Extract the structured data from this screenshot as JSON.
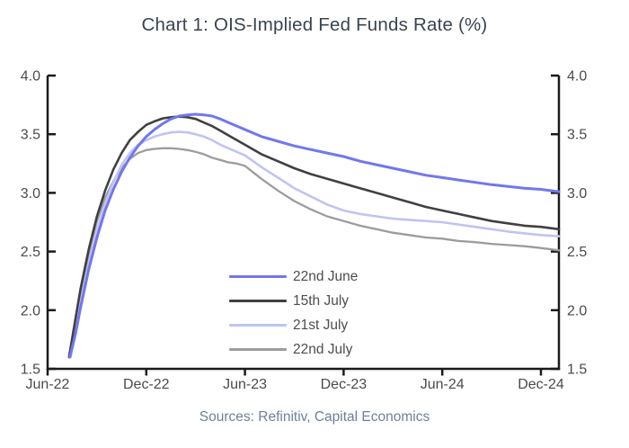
{
  "title": "Chart 1: OIS-Implied Fed Funds Rate (%)",
  "source": "Sources: Refinitiv, Capital Economics",
  "colors": {
    "axis": "#1a1a1a",
    "tick_label": "#4a4a4a",
    "title": "#3a4350",
    "source_text": "#6e8098"
  },
  "chart_data": {
    "type": "line",
    "title": "Chart 1: OIS-Implied Fed Funds Rate (%)",
    "xlabel": "",
    "ylabel": "",
    "x_unit": "months after Jun-2022",
    "xlim": [
      0,
      31.1
    ],
    "ylim": [
      1.5,
      4.0
    ],
    "grid": false,
    "legend_position": "inside-bottom-center",
    "x_ticks": [
      {
        "month": 0,
        "label": "Jun-22"
      },
      {
        "month": 6,
        "label": "Dec-22"
      },
      {
        "month": 12,
        "label": "Jun-23"
      },
      {
        "month": 18,
        "label": "Dec-23"
      },
      {
        "month": 24,
        "label": "Jun-24"
      },
      {
        "month": 30,
        "label": "Dec-24"
      }
    ],
    "y_ticks": [
      {
        "value": 4.0,
        "label": "4.0"
      },
      {
        "value": 3.5,
        "label": "3.5"
      },
      {
        "value": 3.0,
        "label": "3.0"
      },
      {
        "value": 2.5,
        "label": "2.5"
      },
      {
        "value": 2.0,
        "label": "2.0"
      },
      {
        "value": 1.5,
        "label": "1.5"
      }
    ],
    "series": [
      {
        "name": "22nd June",
        "label": "22nd June",
        "color": "#7177ee",
        "width": 3,
        "points": [
          [
            1.35,
            1.6
          ],
          [
            1.7,
            1.8
          ],
          [
            2,
            2.02
          ],
          [
            2.5,
            2.35
          ],
          [
            3,
            2.62
          ],
          [
            3.5,
            2.85
          ],
          [
            4,
            3.03
          ],
          [
            4.5,
            3.18
          ],
          [
            5,
            3.3
          ],
          [
            5.5,
            3.4
          ],
          [
            6,
            3.48
          ],
          [
            6.5,
            3.54
          ],
          [
            7,
            3.59
          ],
          [
            7.5,
            3.63
          ],
          [
            8,
            3.655
          ],
          [
            8.5,
            3.665
          ],
          [
            9,
            3.67
          ],
          [
            9.5,
            3.665
          ],
          [
            10,
            3.655
          ],
          [
            10.5,
            3.63
          ],
          [
            11,
            3.6
          ],
          [
            11.5,
            3.57
          ],
          [
            12,
            3.54
          ],
          [
            13,
            3.48
          ],
          [
            14,
            3.44
          ],
          [
            15,
            3.4
          ],
          [
            16,
            3.37
          ],
          [
            17,
            3.34
          ],
          [
            18,
            3.31
          ],
          [
            19,
            3.27
          ],
          [
            20,
            3.24
          ],
          [
            21,
            3.21
          ],
          [
            22,
            3.18
          ],
          [
            23,
            3.15
          ],
          [
            24,
            3.13
          ],
          [
            25,
            3.11
          ],
          [
            26,
            3.09
          ],
          [
            27,
            3.07
          ],
          [
            28,
            3.055
          ],
          [
            29,
            3.04
          ],
          [
            30,
            3.03
          ],
          [
            31.1,
            3.01
          ]
        ]
      },
      {
        "name": "15th July",
        "label": "15th July",
        "color": "#404040",
        "width": 2.6,
        "points": [
          [
            1.3,
            1.6
          ],
          [
            1.6,
            1.85
          ],
          [
            2,
            2.18
          ],
          [
            2.5,
            2.52
          ],
          [
            3,
            2.8
          ],
          [
            3.5,
            3.02
          ],
          [
            4,
            3.2
          ],
          [
            4.5,
            3.34
          ],
          [
            5,
            3.45
          ],
          [
            5.5,
            3.52
          ],
          [
            6,
            3.58
          ],
          [
            6.5,
            3.61
          ],
          [
            7,
            3.635
          ],
          [
            7.5,
            3.645
          ],
          [
            8,
            3.65
          ],
          [
            8.5,
            3.645
          ],
          [
            9,
            3.63
          ],
          [
            9.5,
            3.6
          ],
          [
            10,
            3.57
          ],
          [
            10.5,
            3.53
          ],
          [
            11,
            3.49
          ],
          [
            11.5,
            3.45
          ],
          [
            12,
            3.41
          ],
          [
            13,
            3.33
          ],
          [
            14,
            3.27
          ],
          [
            15,
            3.21
          ],
          [
            16,
            3.16
          ],
          [
            17,
            3.12
          ],
          [
            18,
            3.08
          ],
          [
            19,
            3.04
          ],
          [
            20,
            3.0
          ],
          [
            21,
            2.96
          ],
          [
            22,
            2.92
          ],
          [
            23,
            2.88
          ],
          [
            24,
            2.85
          ],
          [
            25,
            2.82
          ],
          [
            26,
            2.79
          ],
          [
            27,
            2.76
          ],
          [
            28,
            2.74
          ],
          [
            29,
            2.72
          ],
          [
            30,
            2.71
          ],
          [
            31.1,
            2.69
          ]
        ]
      },
      {
        "name": "21st July",
        "label": "21st July",
        "color": "#bfc4f4",
        "width": 2.6,
        "points": [
          [
            1.4,
            1.6
          ],
          [
            1.7,
            1.82
          ],
          [
            2,
            2.06
          ],
          [
            2.5,
            2.4
          ],
          [
            3,
            2.68
          ],
          [
            3.5,
            2.91
          ],
          [
            4,
            3.09
          ],
          [
            4.5,
            3.24
          ],
          [
            5,
            3.34
          ],
          [
            5.5,
            3.41
          ],
          [
            6,
            3.45
          ],
          [
            6.5,
            3.48
          ],
          [
            7,
            3.5
          ],
          [
            7.5,
            3.515
          ],
          [
            8,
            3.52
          ],
          [
            8.5,
            3.515
          ],
          [
            9,
            3.5
          ],
          [
            9.5,
            3.48
          ],
          [
            10,
            3.45
          ],
          [
            10.5,
            3.41
          ],
          [
            11,
            3.38
          ],
          [
            11.5,
            3.35
          ],
          [
            12,
            3.32
          ],
          [
            13,
            3.22
          ],
          [
            14,
            3.13
          ],
          [
            15,
            3.04
          ],
          [
            16,
            2.97
          ],
          [
            17,
            2.9
          ],
          [
            18,
            2.85
          ],
          [
            19,
            2.82
          ],
          [
            20,
            2.8
          ],
          [
            21,
            2.78
          ],
          [
            22,
            2.77
          ],
          [
            23,
            2.76
          ],
          [
            24,
            2.75
          ],
          [
            25,
            2.73
          ],
          [
            26,
            2.71
          ],
          [
            27,
            2.69
          ],
          [
            28,
            2.67
          ],
          [
            29,
            2.655
          ],
          [
            30,
            2.64
          ],
          [
            31.1,
            2.63
          ]
        ]
      },
      {
        "name": "22nd July",
        "label": "22nd July",
        "color": "#9c9c9c",
        "width": 2.3,
        "points": [
          [
            1.4,
            1.6
          ],
          [
            1.7,
            1.86
          ],
          [
            2,
            2.14
          ],
          [
            2.5,
            2.48
          ],
          [
            3,
            2.76
          ],
          [
            3.5,
            2.96
          ],
          [
            4,
            3.1
          ],
          [
            4.5,
            3.21
          ],
          [
            5,
            3.29
          ],
          [
            5.5,
            3.34
          ],
          [
            6,
            3.365
          ],
          [
            6.5,
            3.375
          ],
          [
            7,
            3.38
          ],
          [
            7.5,
            3.38
          ],
          [
            8,
            3.375
          ],
          [
            8.5,
            3.365
          ],
          [
            9,
            3.35
          ],
          [
            9.5,
            3.33
          ],
          [
            10,
            3.3
          ],
          [
            10.5,
            3.28
          ],
          [
            11,
            3.26
          ],
          [
            11.5,
            3.25
          ],
          [
            12,
            3.23
          ],
          [
            13,
            3.12
          ],
          [
            14,
            3.02
          ],
          [
            15,
            2.93
          ],
          [
            16,
            2.86
          ],
          [
            17,
            2.8
          ],
          [
            18,
            2.76
          ],
          [
            19,
            2.72
          ],
          [
            20,
            2.69
          ],
          [
            21,
            2.66
          ],
          [
            22,
            2.64
          ],
          [
            23,
            2.62
          ],
          [
            24,
            2.61
          ],
          [
            25,
            2.59
          ],
          [
            26,
            2.58
          ],
          [
            27,
            2.565
          ],
          [
            28,
            2.555
          ],
          [
            29,
            2.545
          ],
          [
            30,
            2.53
          ],
          [
            31.1,
            2.51
          ]
        ]
      }
    ]
  }
}
